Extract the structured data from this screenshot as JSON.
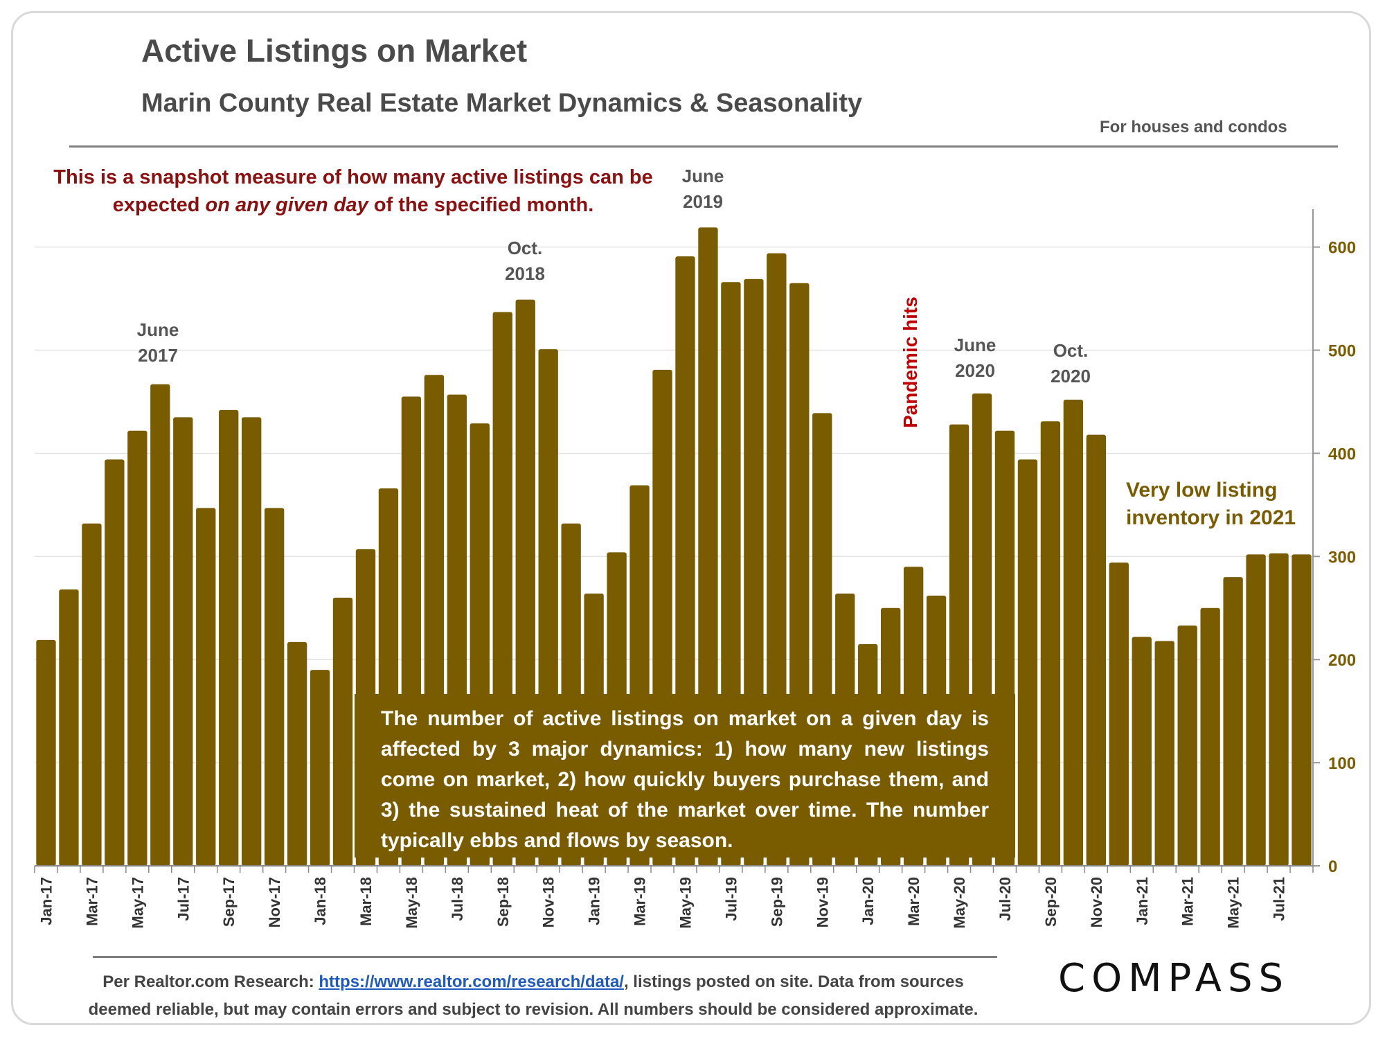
{
  "title": "Active Listings on Market",
  "subtitle": "Marin County Real Estate Market Dynamics & Seasonality",
  "scope": "For houses and condos",
  "note": {
    "part1": "This is a snapshot measure of how many active listings can be expected ",
    "emphasis": "on any given day",
    "part2": " of the specified month."
  },
  "annotations": {
    "peak_jun17": [
      "June",
      "2017"
    ],
    "peak_oct18": [
      "Oct.",
      "2018"
    ],
    "peak_jun19": [
      "June",
      "2019"
    ],
    "peak_jun20": [
      "June",
      "2020"
    ],
    "peak_oct20": [
      "Oct.",
      "2020"
    ],
    "pandemic": "Pandemic hits",
    "low_inventory": "Very low listing inventory in 2021"
  },
  "explanation": "The number of active listings on market on a given day is affected by 3 major dynamics: 1) how many new listings come on market, 2) how quickly buyers purchase them, and 3) the sustained heat of the market over time. The number typically ebbs and flows by season.",
  "source": {
    "prefix": "Per Realtor.com Research: ",
    "link": "https://www.realtor.com/research/data/",
    "suffix": ", listings posted on site. Data from sources deemed reliable, but may contain errors and subject to revision. All numbers should be considered approximate."
  },
  "logo": "COMPASS",
  "colors": {
    "bar": "#7a5c00",
    "note": "#8b1010",
    "pandemic": "#c00000"
  },
  "chart_data": {
    "type": "bar",
    "title": "Active Listings on Market",
    "ylim": [
      0,
      630
    ],
    "yticks": [
      0,
      100,
      200,
      300,
      400,
      500,
      600
    ],
    "grid": true,
    "y_axis_side": "right",
    "categories": [
      "Jan-17",
      "Feb-17",
      "Mar-17",
      "Apr-17",
      "May-17",
      "Jun-17",
      "Jul-17",
      "Aug-17",
      "Sep-17",
      "Oct-17",
      "Nov-17",
      "Dec-17",
      "Jan-18",
      "Feb-18",
      "Mar-18",
      "Apr-18",
      "May-18",
      "Jun-18",
      "Jul-18",
      "Aug-18",
      "Sep-18",
      "Oct-18",
      "Nov-18",
      "Dec-18",
      "Jan-19",
      "Feb-19",
      "Mar-19",
      "Apr-19",
      "May-19",
      "Jun-19",
      "Jul-19",
      "Aug-19",
      "Sep-19",
      "Oct-19",
      "Nov-19",
      "Dec-19",
      "Jan-20",
      "Feb-20",
      "Mar-20",
      "Apr-20",
      "May-20",
      "Jun-20",
      "Jul-20",
      "Aug-20",
      "Sep-20",
      "Oct-20",
      "Nov-20",
      "Dec-20",
      "Jan-21",
      "Feb-21",
      "Mar-21",
      "Apr-21",
      "May-21",
      "Jun-21",
      "Jul-21",
      "Aug-21"
    ],
    "values": [
      219,
      268,
      332,
      394,
      422,
      467,
      435,
      347,
      442,
      435,
      347,
      217,
      190,
      260,
      307,
      366,
      455,
      476,
      457,
      429,
      537,
      549,
      501,
      332,
      264,
      304,
      369,
      481,
      591,
      619,
      566,
      569,
      594,
      565,
      439,
      264,
      215,
      250,
      290,
      262,
      428,
      458,
      422,
      394,
      431,
      452,
      418,
      294,
      222,
      218,
      233,
      250,
      280,
      302,
      303,
      302
    ],
    "xtick_labels": [
      "Jan-17",
      "Mar-17",
      "May-17",
      "Jul-17",
      "Sep-17",
      "Nov-17",
      "Jan-18",
      "Mar-18",
      "May-18",
      "Jul-18",
      "Sep-18",
      "Nov-18",
      "Jan-19",
      "Mar-19",
      "May-19",
      "Jul-19",
      "Sep-19",
      "Nov-19",
      "Jan-20",
      "Mar-20",
      "May-20",
      "Jul-20",
      "Sep-20",
      "Nov-20",
      "Jan-21",
      "Mar-21",
      "May-21",
      "Jul-21"
    ]
  }
}
